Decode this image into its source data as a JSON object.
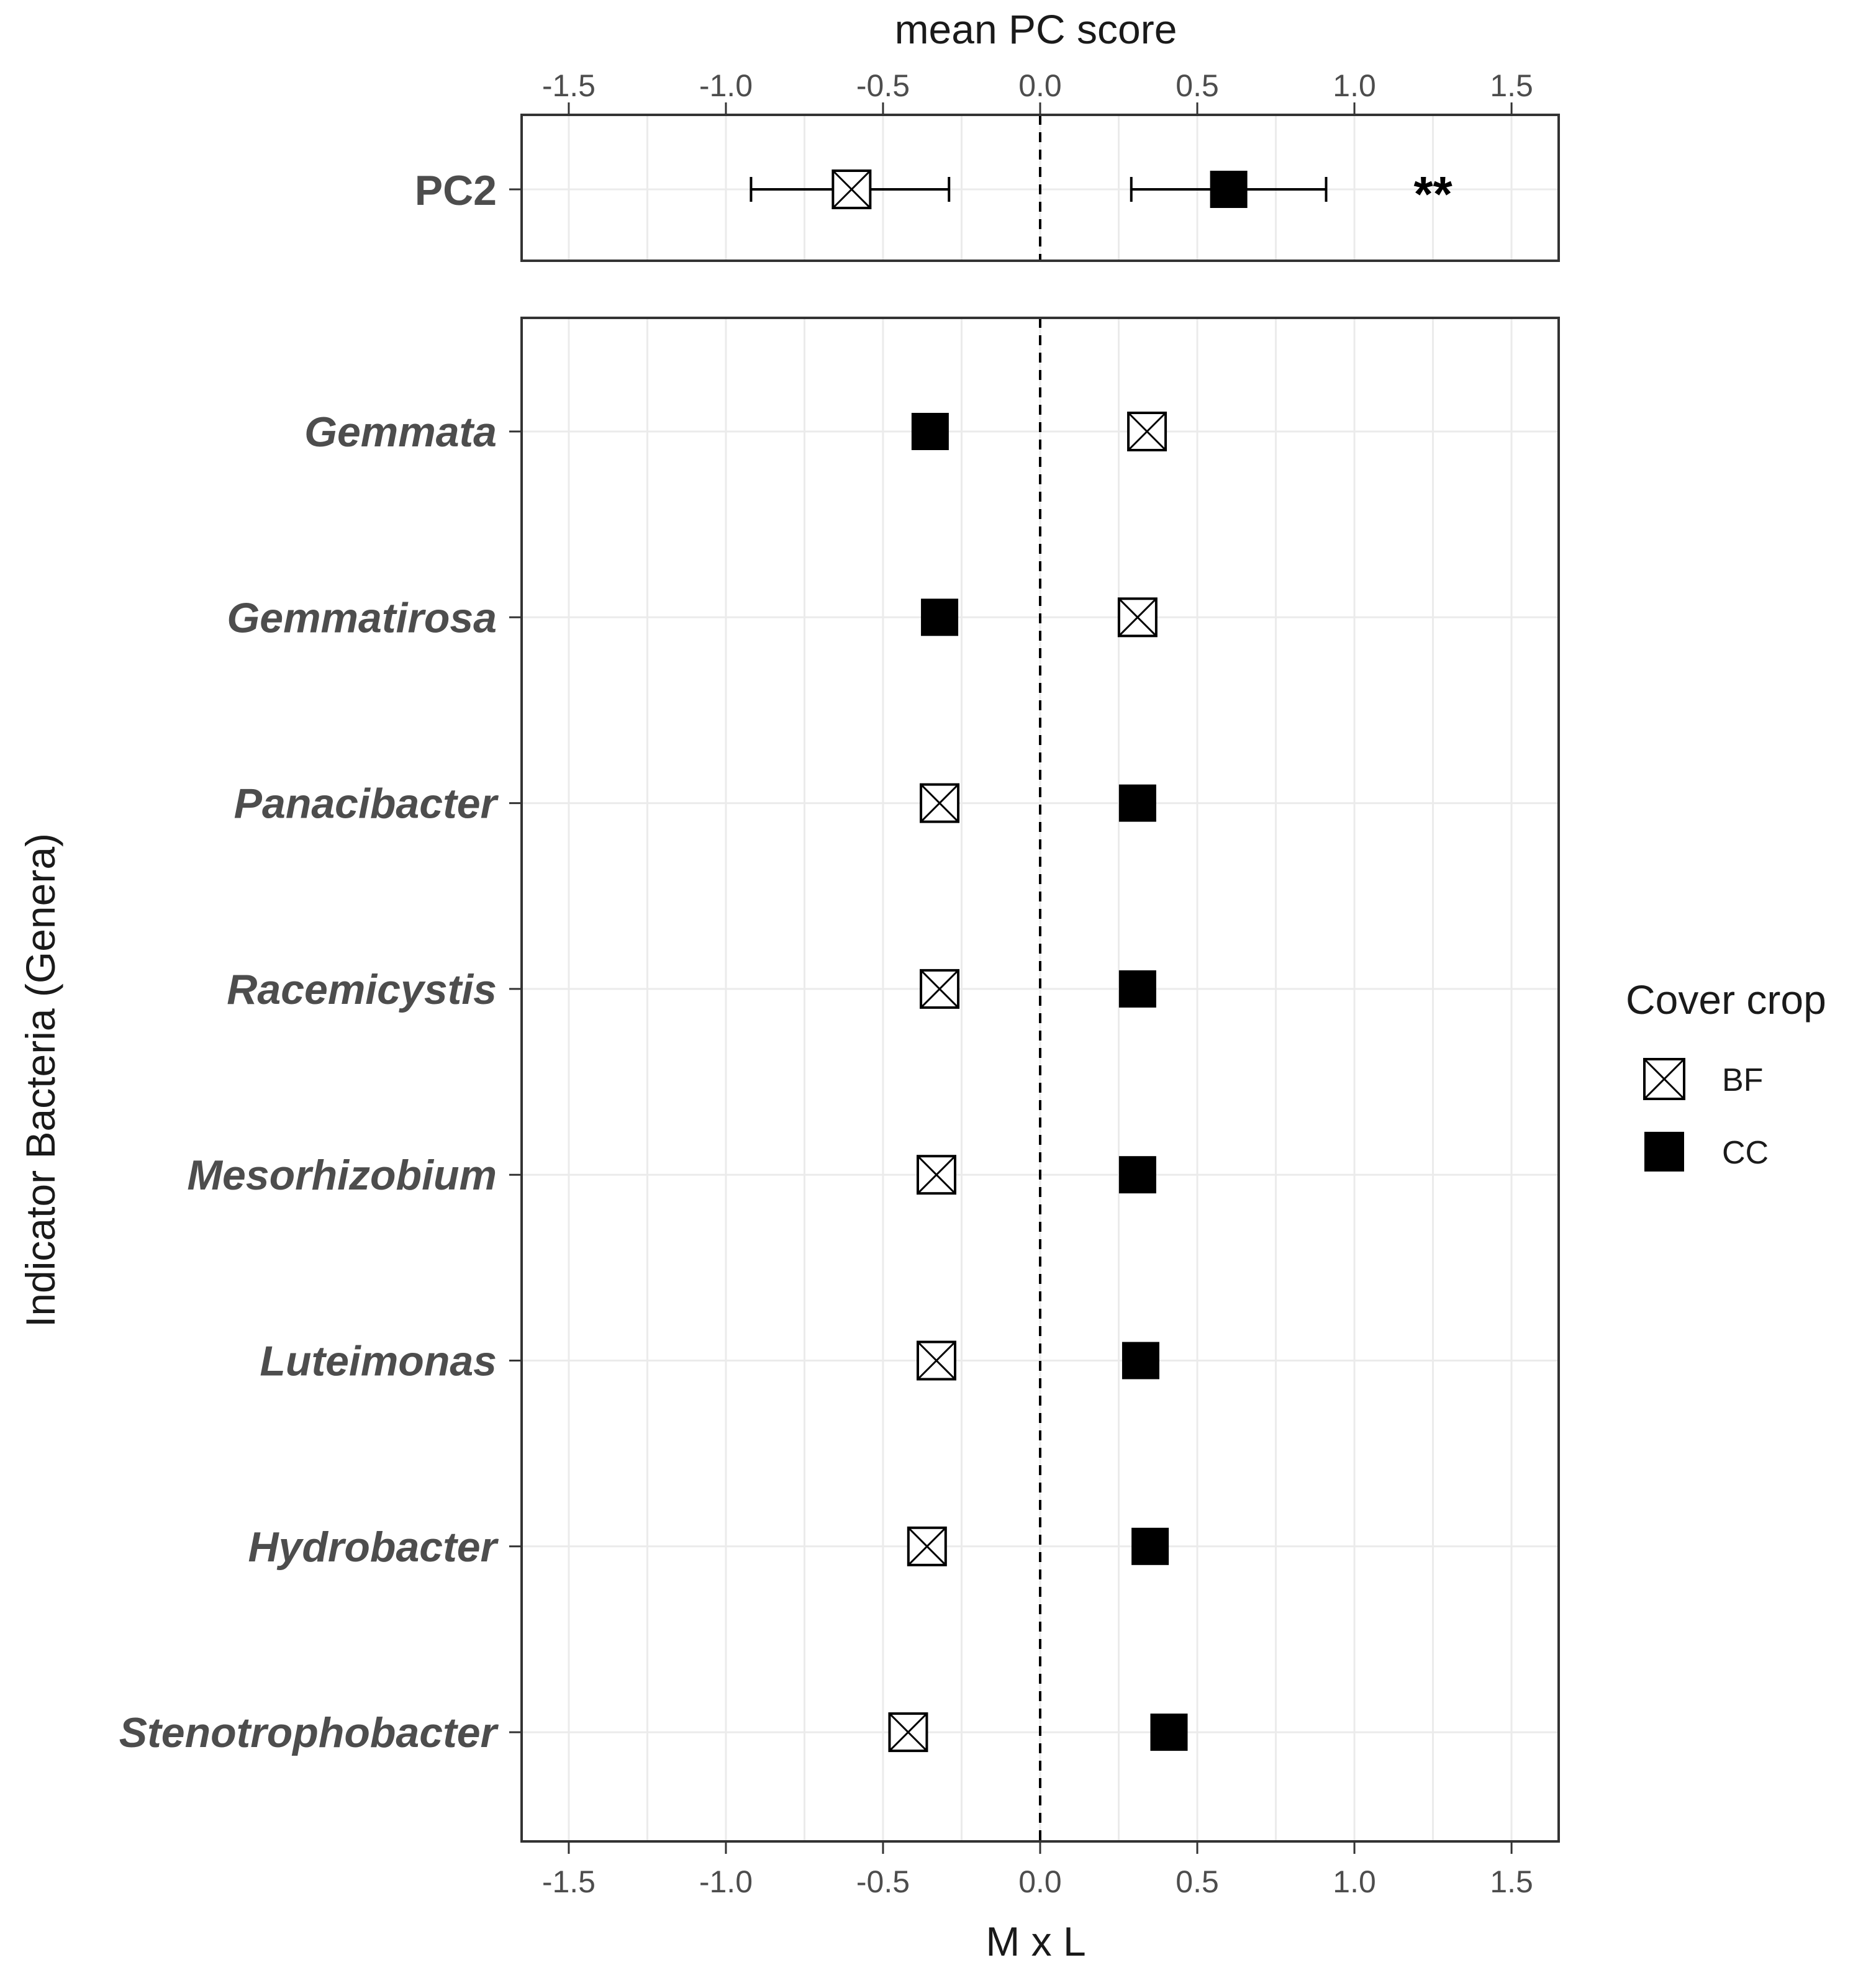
{
  "chart_data": {
    "type": "scatter",
    "top_axis_title": "mean PC score",
    "xlabel": "M x L",
    "ylabel": "Indicator Bacteria (Genera)",
    "xlim": [
      -1.65,
      1.65
    ],
    "x_ticks": [
      -1.5,
      -1.0,
      -0.5,
      0.0,
      0.5,
      1.0,
      1.5
    ],
    "x_tick_labels": [
      "-1.5",
      "-1.0",
      "-0.5",
      "0.0",
      "0.5",
      "1.0",
      "1.5"
    ],
    "reference_line_x": 0.0,
    "pc_panel": {
      "label": "PC2",
      "points": [
        {
          "group": "BF",
          "mean": -0.6,
          "lower": -0.92,
          "upper": -0.29
        },
        {
          "group": "CC",
          "mean": 0.6,
          "lower": 0.29,
          "upper": 0.91
        }
      ],
      "significance": "**",
      "significance_x": 1.25
    },
    "genera_panel": {
      "categories": [
        "Gemmata",
        "Gemmatirosa",
        "Panacibacter",
        "Racemicystis",
        "Mesorhizobium",
        "Luteimonas",
        "Hydrobacter",
        "Stenotrophobacter"
      ],
      "series": [
        {
          "name": "BF",
          "values": [
            0.34,
            0.31,
            -0.32,
            -0.32,
            -0.33,
            -0.33,
            -0.36,
            -0.42
          ]
        },
        {
          "name": "CC",
          "values": [
            -0.35,
            -0.32,
            0.31,
            0.31,
            0.31,
            0.32,
            0.35,
            0.41
          ]
        }
      ]
    },
    "legend": {
      "title": "Cover crop",
      "position": "right",
      "items": [
        {
          "label": "BF",
          "symbol": "square-cross-open"
        },
        {
          "label": "CC",
          "symbol": "square-filled"
        }
      ]
    }
  }
}
